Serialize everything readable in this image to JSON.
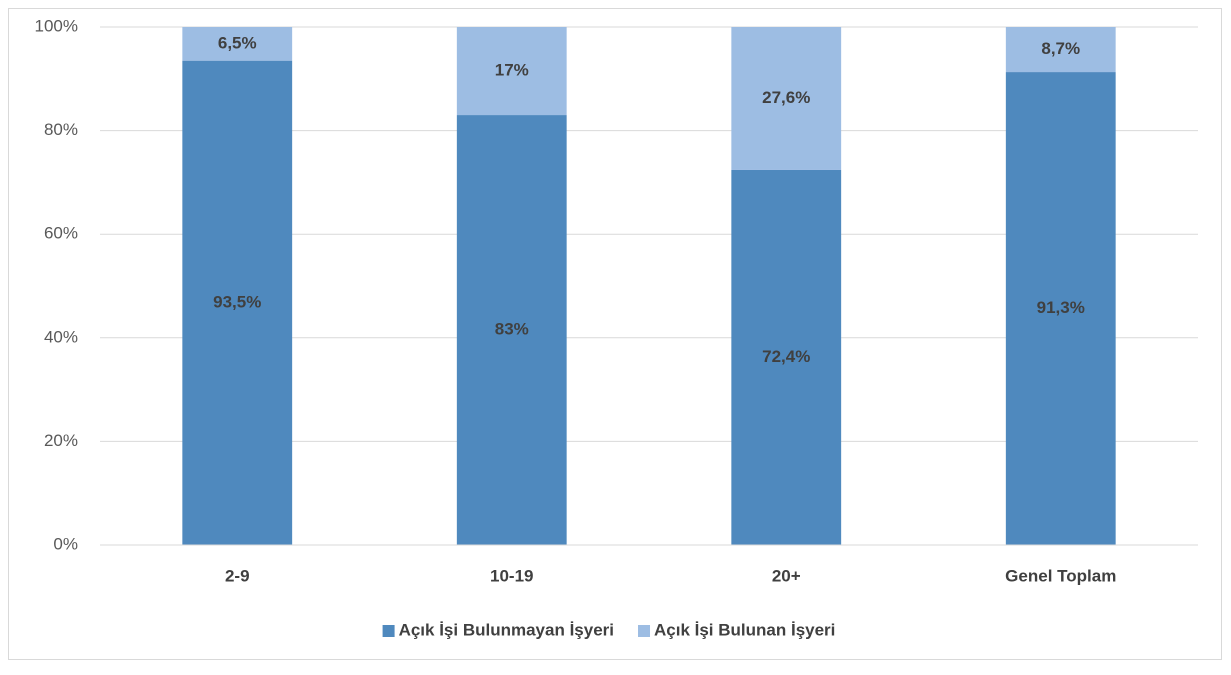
{
  "chart_data": {
    "type": "stacked_bar",
    "categories": [
      "2-9",
      "10-19",
      "20+",
      "Genel Toplam"
    ],
    "series": [
      {
        "name": "Açık İşi Bulunmayan İşyeri",
        "color": "#4f89be",
        "values": [
          93.5,
          83,
          72.4,
          91.3
        ],
        "value_labels": [
          "93,5%",
          "83%",
          "72,4%",
          "91,3%"
        ]
      },
      {
        "name": "Açık İşi Bulunan İşyeri",
        "color": "#9dbde3",
        "values": [
          6.5,
          17,
          27.6,
          8.7
        ],
        "value_labels": [
          "6,5%",
          "17%",
          "27,6%",
          "8,7%"
        ]
      }
    ],
    "ylim": [
      0,
      100
    ],
    "yticks": [
      {
        "value": 0,
        "label": "0%"
      },
      {
        "value": 20,
        "label": "20%"
      },
      {
        "value": 40,
        "label": "40%"
      },
      {
        "value": 60,
        "label": "60%"
      },
      {
        "value": 80,
        "label": "80%"
      },
      {
        "value": 100,
        "label": "100%"
      }
    ],
    "grid": true,
    "legend": "bottom"
  }
}
